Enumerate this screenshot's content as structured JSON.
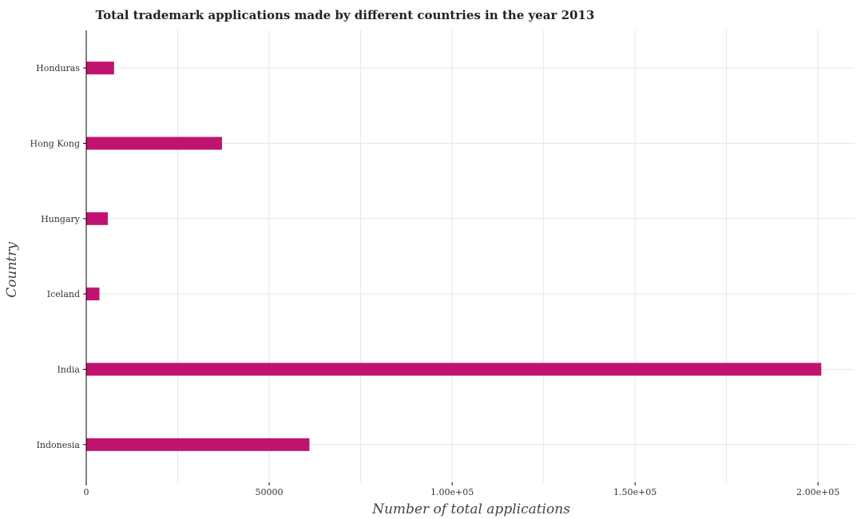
{
  "chart_data": {
    "type": "bar",
    "orientation": "horizontal",
    "title": "Total trademark applications made by different countries in the year 2013",
    "xlabel": "Number of total applications",
    "ylabel": "Country",
    "categories": [
      "Honduras",
      "Hong Kong",
      "Hungary",
      "Iceland",
      "India",
      "Indonesia"
    ],
    "values": [
      7600,
      37100,
      5900,
      3600,
      200900,
      61000
    ],
    "xlim": [
      0,
      210000
    ],
    "xticks": [
      0,
      50000,
      100000,
      150000,
      200000
    ],
    "xtick_labels": [
      "0",
      "50000",
      "1.00e+05",
      "1.50e+05",
      "2.00e+05"
    ],
    "grid": true,
    "bar_color": "#c0136f"
  }
}
